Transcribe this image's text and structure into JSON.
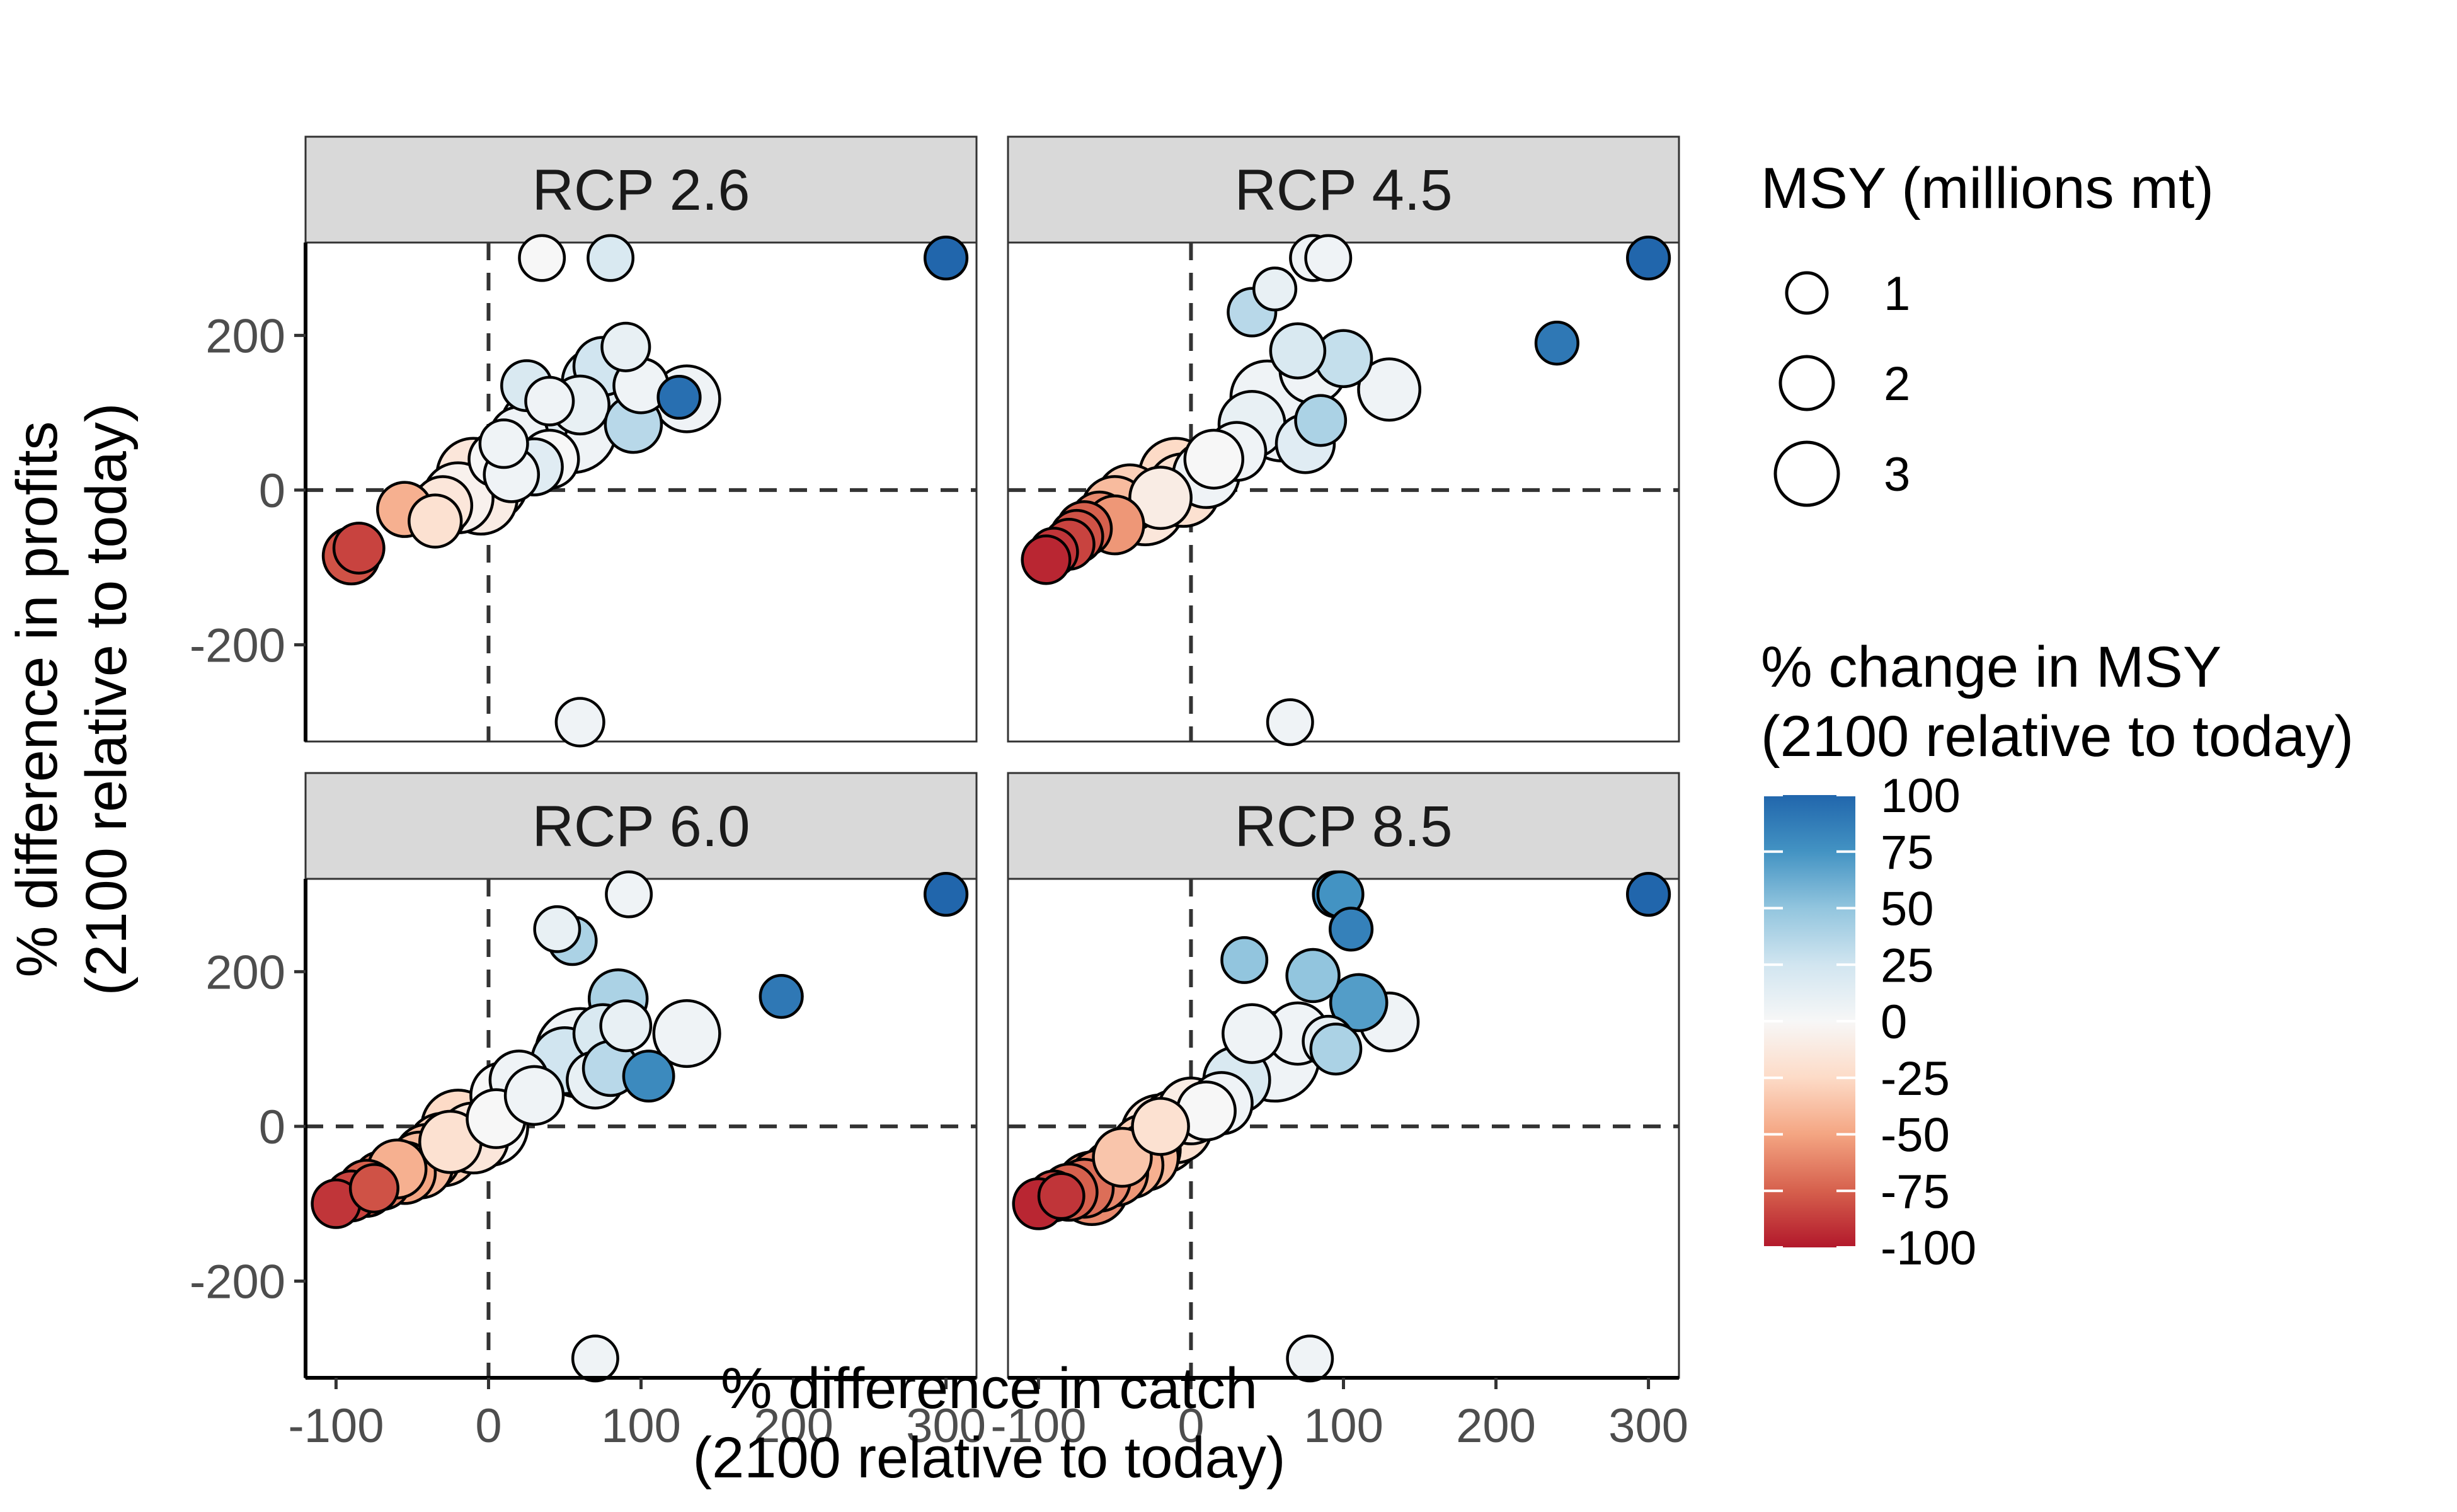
{
  "chart_data": {
    "type": "scatter",
    "facets": [
      "RCP 2.6",
      "RCP 4.5",
      "RCP 6.0",
      "RCP 8.5"
    ],
    "xlabel_line1": "% difference in catch",
    "xlabel_line2": "(2100 relative to today)",
    "ylabel_line1": "% difference in profits",
    "ylabel_line2": "(2100 relative to today)",
    "xlim": [
      -120,
      320
    ],
    "ylim": [
      -325,
      320
    ],
    "x_ticks": [
      -100,
      0,
      100,
      200,
      300
    ],
    "x_tick_labels": [
      "-100",
      "0",
      "100",
      "200",
      "300"
    ],
    "y_ticks": [
      200,
      0,
      -200
    ],
    "y_tick_labels": [
      "200",
      "0",
      "-200"
    ],
    "reference_lines": {
      "x": 0,
      "y": 0,
      "style": "dashed"
    },
    "size_legend": {
      "title": "MSY (millions mt)",
      "entries": [
        {
          "value": 1,
          "label": "1"
        },
        {
          "value": 2,
          "label": "2"
        },
        {
          "value": 3,
          "label": "3"
        }
      ]
    },
    "color_legend": {
      "title_line1": "% change in MSY",
      "title_line2": "(2100 relative to today)",
      "ticks": [
        100,
        75,
        50,
        25,
        0,
        -25,
        -50,
        -75,
        -100
      ],
      "tick_labels": [
        "100",
        "75",
        "50",
        "25",
        "0",
        "-25",
        "-50",
        "-75",
        "-100"
      ],
      "colors": [
        "#B2182B",
        "#D6604D",
        "#F4A582",
        "#FDDBC7",
        "#F7F7F7",
        "#D1E5F0",
        "#92C5DE",
        "#4393C3",
        "#2166AC"
      ]
    },
    "points": {
      "RCP 2.6": [
        [
          300,
          300,
          0.3,
          100
        ],
        [
          80,
          300,
          0.4,
          20
        ],
        [
          35,
          300,
          0.4,
          0
        ],
        [
          60,
          -300,
          0.5,
          5
        ],
        [
          125,
          120,
          0.3,
          95
        ],
        [
          130,
          118,
          1.5,
          5
        ],
        [
          90,
          185,
          0.5,
          10
        ],
        [
          75,
          160,
          1.0,
          25
        ],
        [
          70,
          140,
          1.5,
          15
        ],
        [
          100,
          135,
          0.8,
          5
        ],
        [
          95,
          85,
          0.9,
          35
        ],
        [
          60,
          110,
          1.0,
          10
        ],
        [
          25,
          135,
          0.6,
          20
        ],
        [
          40,
          115,
          0.5,
          5
        ],
        [
          55,
          80,
          3.5,
          5
        ],
        [
          30,
          85,
          1.5,
          15
        ],
        [
          20,
          70,
          1.0,
          5
        ],
        [
          10,
          60,
          0.5,
          5
        ],
        [
          5,
          40,
          0.8,
          0
        ],
        [
          -10,
          20,
          2.0,
          -15
        ],
        [
          20,
          40,
          1.2,
          10
        ],
        [
          40,
          40,
          1.0,
          0
        ],
        [
          0,
          10,
          2.5,
          -5
        ],
        [
          -5,
          -10,
          2.0,
          -10
        ],
        [
          -20,
          -10,
          1.8,
          -5
        ],
        [
          -30,
          -20,
          1.0,
          -15
        ],
        [
          -35,
          -30,
          1.2,
          -25
        ],
        [
          -55,
          -25,
          0.8,
          -45
        ],
        [
          -35,
          -40,
          0.7,
          -20
        ],
        [
          -90,
          -85,
          0.9,
          -80
        ],
        [
          -85,
          -75,
          0.6,
          -85
        ],
        [
          15,
          20,
          0.8,
          5
        ],
        [
          30,
          30,
          0.9,
          15
        ]
      ],
      "RCP 4.5": [
        [
          300,
          300,
          0.3,
          100
        ],
        [
          240,
          190,
          0.3,
          90
        ],
        [
          80,
          300,
          0.4,
          5
        ],
        [
          90,
          300,
          0.4,
          5
        ],
        [
          65,
          -300,
          0.4,
          5
        ],
        [
          55,
          260,
          0.3,
          10
        ],
        [
          40,
          230,
          0.5,
          35
        ],
        [
          70,
          180,
          0.8,
          20
        ],
        [
          100,
          170,
          0.9,
          30
        ],
        [
          80,
          155,
          1.5,
          5
        ],
        [
          130,
          130,
          1.2,
          5
        ],
        [
          50,
          120,
          2.0,
          5
        ],
        [
          60,
          95,
          3.5,
          5
        ],
        [
          40,
          85,
          1.5,
          10
        ],
        [
          85,
          90,
          0.6,
          40
        ],
        [
          75,
          60,
          1.0,
          15
        ],
        [
          30,
          50,
          1.0,
          5
        ],
        [
          15,
          40,
          1.0,
          0
        ],
        [
          10,
          20,
          1.5,
          5
        ],
        [
          -10,
          20,
          2.0,
          -25
        ],
        [
          -5,
          0,
          2.0,
          -20
        ],
        [
          -30,
          -20,
          2.5,
          -15
        ],
        [
          -40,
          -10,
          1.5,
          -30
        ],
        [
          -50,
          -25,
          1.5,
          -40
        ],
        [
          -60,
          -40,
          1.0,
          -60
        ],
        [
          -70,
          -50,
          0.8,
          -75
        ],
        [
          -75,
          -60,
          0.7,
          -80
        ],
        [
          -80,
          -70,
          0.6,
          -85
        ],
        [
          -90,
          -80,
          0.5,
          -90
        ],
        [
          -95,
          -90,
          0.5,
          -95
        ],
        [
          -50,
          -45,
          1.0,
          -55
        ],
        [
          -20,
          -10,
          1.2,
          -10
        ]
      ],
      "RCP 6.0": [
        [
          300,
          300,
          0.3,
          100
        ],
        [
          192,
          168,
          0.3,
          90
        ],
        [
          92,
          300,
          0.4,
          5
        ],
        [
          70,
          -300,
          0.4,
          5
        ],
        [
          45,
          255,
          0.4,
          10
        ],
        [
          55,
          240,
          0.5,
          40
        ],
        [
          85,
          165,
          1.0,
          40
        ],
        [
          90,
          130,
          0.6,
          10
        ],
        [
          75,
          120,
          1.0,
          20
        ],
        [
          130,
          120,
          1.5,
          5
        ],
        [
          60,
          95,
          3.5,
          5
        ],
        [
          50,
          85,
          1.5,
          25
        ],
        [
          105,
          65,
          0.6,
          80
        ],
        [
          80,
          75,
          0.8,
          35
        ],
        [
          70,
          60,
          0.9,
          10
        ],
        [
          20,
          60,
          1.0,
          5
        ],
        [
          10,
          40,
          1.5,
          0
        ],
        [
          0,
          0,
          2.5,
          0
        ],
        [
          -20,
          0,
          2.0,
          -25
        ],
        [
          -30,
          -30,
          2.0,
          -30
        ],
        [
          -40,
          -40,
          1.5,
          -40
        ],
        [
          -55,
          -60,
          1.2,
          -50
        ],
        [
          -70,
          -70,
          1.0,
          -65
        ],
        [
          -80,
          -80,
          0.9,
          -75
        ],
        [
          -90,
          -90,
          0.6,
          -85
        ],
        [
          -100,
          -100,
          0.5,
          -90
        ],
        [
          -75,
          -80,
          0.5,
          -80
        ],
        [
          -60,
          -55,
          1.0,
          -45
        ],
        [
          -45,
          -50,
          1.5,
          -40
        ],
        [
          -10,
          -15,
          1.8,
          -15
        ],
        [
          5,
          10,
          1.0,
          0
        ],
        [
          30,
          40,
          1.0,
          5
        ],
        [
          -25,
          -20,
          1.2,
          -20
        ]
      ],
      "RCP 8.5": [
        [
          300,
          300,
          0.3,
          100
        ],
        [
          95,
          300,
          0.4,
          80
        ],
        [
          98,
          300,
          0.4,
          75
        ],
        [
          105,
          255,
          0.3,
          85
        ],
        [
          78,
          -300,
          0.4,
          5
        ],
        [
          35,
          215,
          0.4,
          50
        ],
        [
          80,
          195,
          0.7,
          50
        ],
        [
          110,
          160,
          0.9,
          70
        ],
        [
          130,
          135,
          1.0,
          5
        ],
        [
          40,
          120,
          1.0,
          5
        ],
        [
          70,
          120,
          1.2,
          5
        ],
        [
          55,
          90,
          3.5,
          5
        ],
        [
          30,
          60,
          1.5,
          20
        ],
        [
          90,
          110,
          0.6,
          10
        ],
        [
          95,
          100,
          0.6,
          40
        ],
        [
          0,
          20,
          1.5,
          -10
        ],
        [
          -10,
          0,
          2.0,
          -20
        ],
        [
          -20,
          -10,
          2.5,
          -15
        ],
        [
          -30,
          -40,
          1.5,
          -40
        ],
        [
          -40,
          -50,
          1.5,
          -45
        ],
        [
          -50,
          -60,
          1.5,
          -55
        ],
        [
          -60,
          -70,
          1.2,
          -60
        ],
        [
          -70,
          -80,
          1.0,
          -70
        ],
        [
          -80,
          -85,
          0.9,
          -75
        ],
        [
          -90,
          -90,
          0.6,
          -85
        ],
        [
          -100,
          -100,
          0.6,
          -95
        ],
        [
          -85,
          -90,
          0.4,
          -90
        ],
        [
          -65,
          -80,
          2.0,
          -60
        ],
        [
          -45,
          -40,
          1.0,
          -35
        ],
        [
          -20,
          0,
          0.9,
          -20
        ],
        [
          10,
          20,
          1.0,
          0
        ],
        [
          20,
          30,
          1.2,
          5
        ],
        [
          -30,
          -30,
          1.8,
          -30
        ]
      ]
    }
  }
}
